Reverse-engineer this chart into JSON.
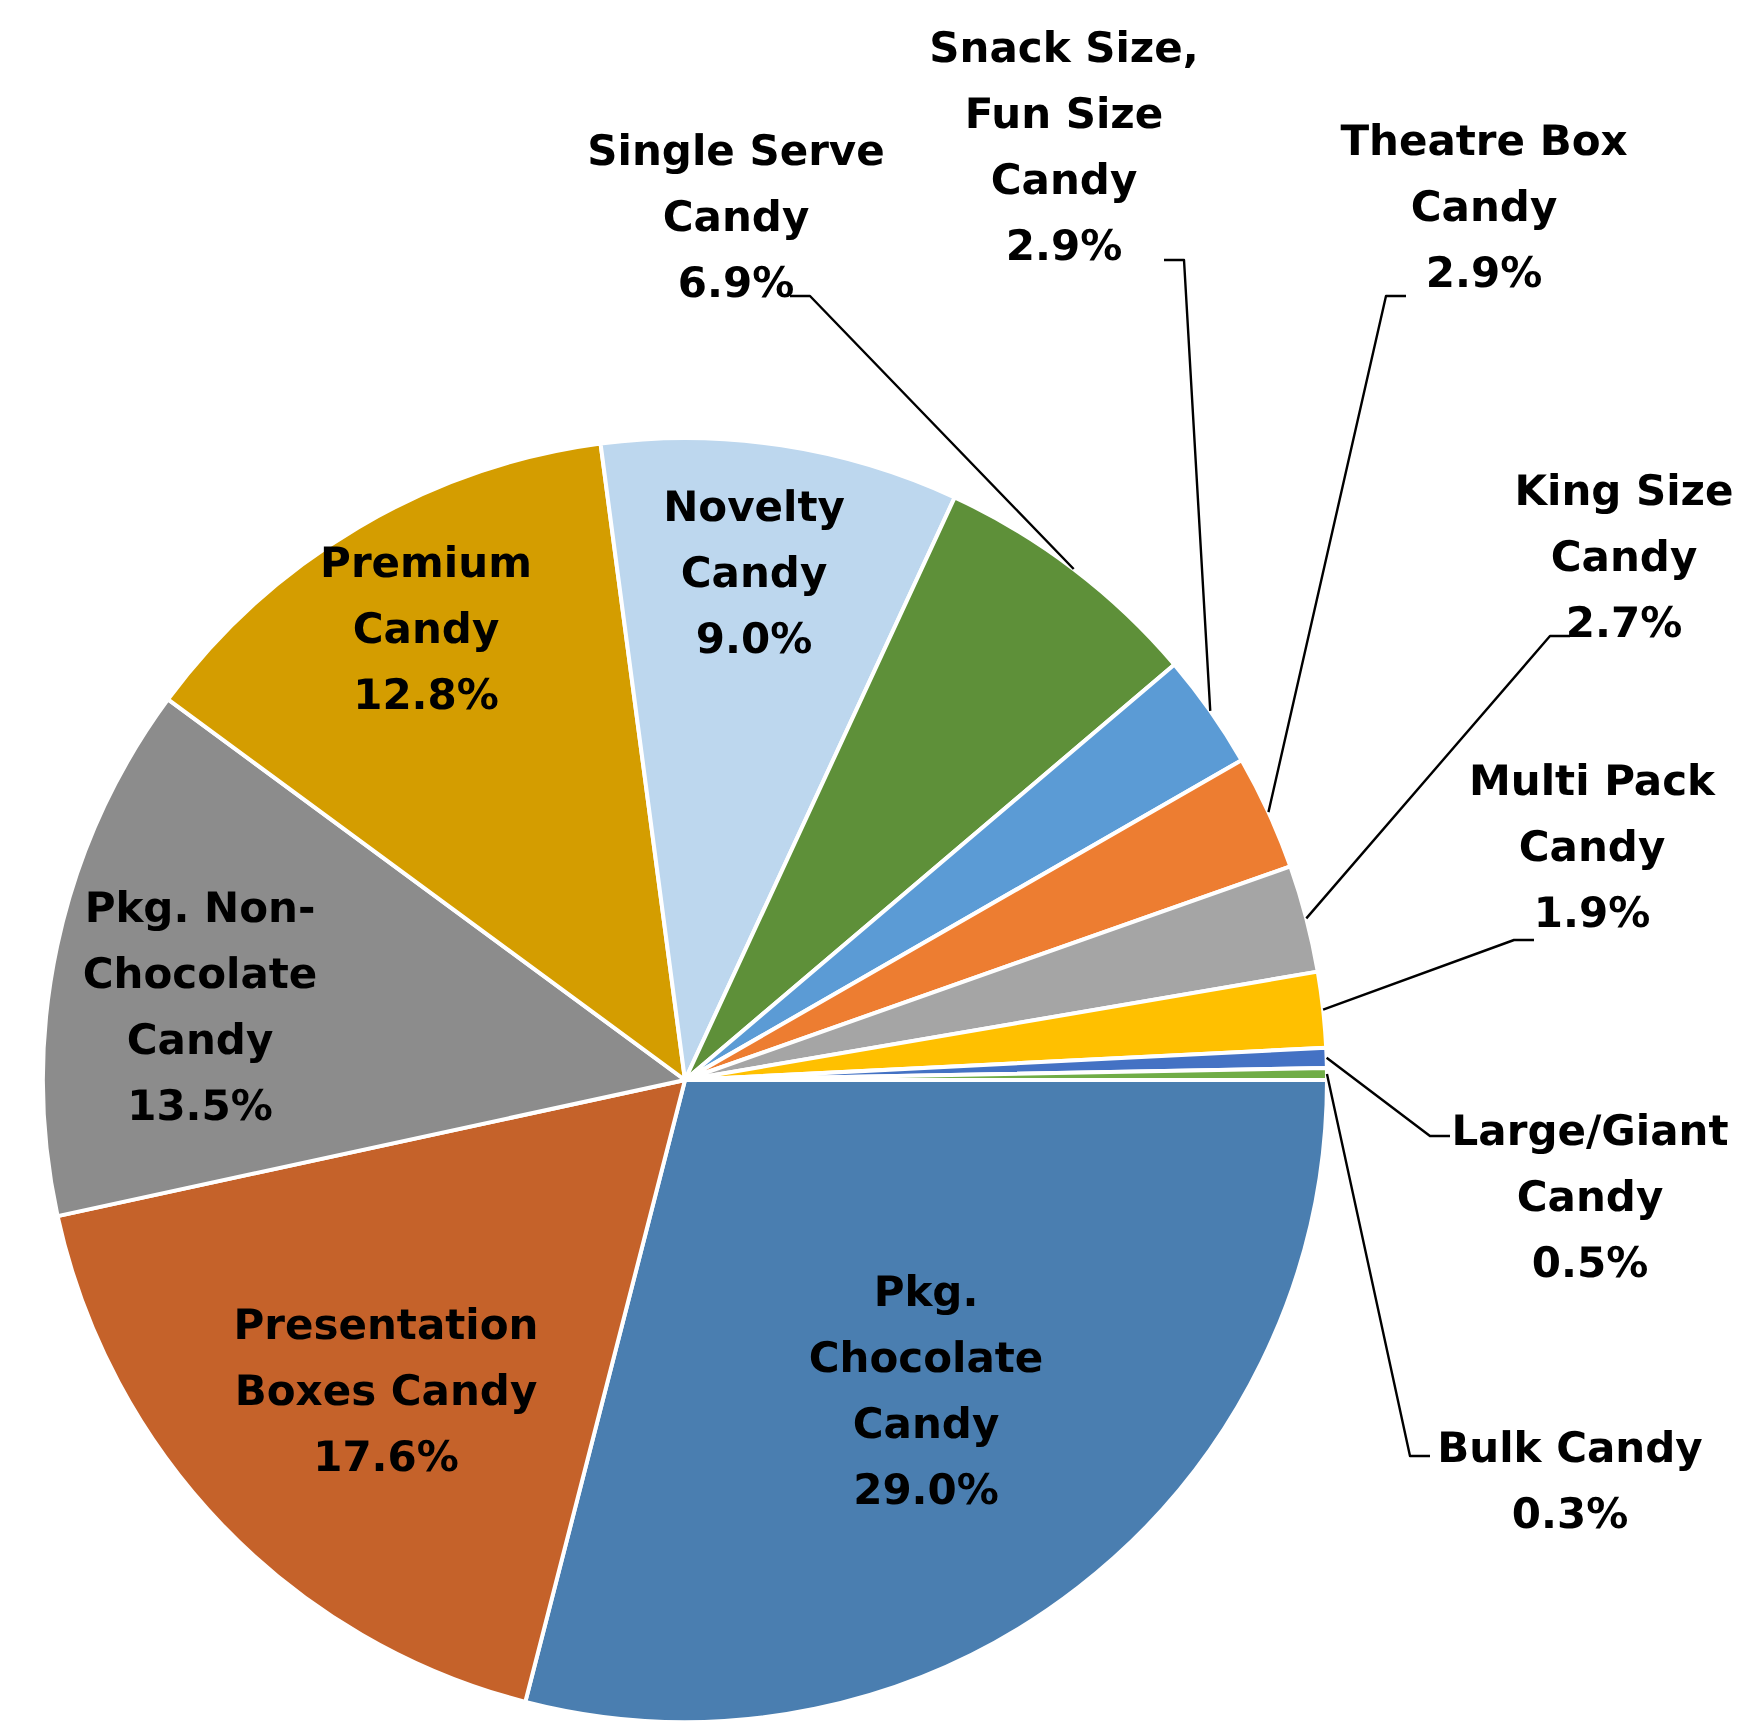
{
  "chart_data": {
    "type": "pie",
    "categories": [
      "Pkg. Chocolate Candy",
      "Presentation Boxes Candy",
      "Pkg. Non-Chocolate Candy",
      "Premium Candy",
      "Novelty Candy",
      "Single Serve Candy",
      "Snack Size, Fun Size Candy",
      "Theatre Box Candy",
      "King Size Candy",
      "Multi Pack Candy",
      "Large/Giant Candy",
      "Bulk Candy"
    ],
    "values": [
      29.0,
      17.6,
      13.5,
      12.8,
      9.0,
      6.9,
      2.9,
      2.9,
      2.7,
      1.9,
      0.5,
      0.3
    ],
    "value_labels": [
      "29.0%",
      "17.6%",
      "13.5%",
      "12.8%",
      "9.0%",
      "6.9%",
      "2.9%",
      "2.9%",
      "2.7%",
      "1.9%",
      "0.5%",
      "0.3%"
    ],
    "colors": [
      "#4a7eb0",
      "#c5622a",
      "#8c8c8c",
      "#d49d00",
      "#bdd7ee",
      "#5e9039",
      "#5b9bd5",
      "#ed7d31",
      "#a5a5a5",
      "#ffc000",
      "#4472c4",
      "#70ad47"
    ],
    "legend": false
  }
}
